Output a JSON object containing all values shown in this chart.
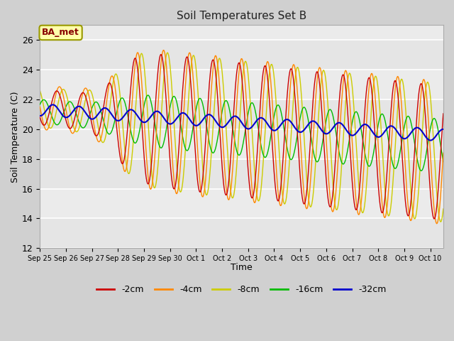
{
  "title": "Soil Temperatures Set B",
  "xlabel": "Time",
  "ylabel": "Soil Temperature (C)",
  "ylim": [
    12,
    27
  ],
  "annotation": "BA_met",
  "colors": {
    "-2cm": "#cc0000",
    "-4cm": "#ff8800",
    "-8cm": "#cccc00",
    "-16cm": "#00bb00",
    "-32cm": "#0000cc"
  },
  "legend_labels": [
    "-2cm",
    "-4cm",
    "-8cm",
    "-16cm",
    "-32cm"
  ],
  "fig_bg_color": "#d0d0d0",
  "plot_bg_color": "#ebebeb",
  "xtick_labels": [
    "Sep 25",
    "Sep 26",
    "Sep 27",
    "Sep 28",
    "Sep 29",
    "Sep 30",
    "Oct 1",
    "Oct 2",
    "Oct 3",
    "Oct 4",
    "Oct 5",
    "Oct 6",
    "Oct 7",
    "Oct 8",
    "Oct 9",
    "Oct 10"
  ],
  "ytick_labels": [
    "12",
    "14",
    "16",
    "18",
    "20",
    "22",
    "24",
    "26"
  ],
  "ytick_vals": [
    12,
    14,
    16,
    18,
    20,
    22,
    24,
    26
  ],
  "n_days": 15.5,
  "samples_per_day": 48,
  "figsize": [
    6.4,
    4.8
  ],
  "dpi": 100
}
